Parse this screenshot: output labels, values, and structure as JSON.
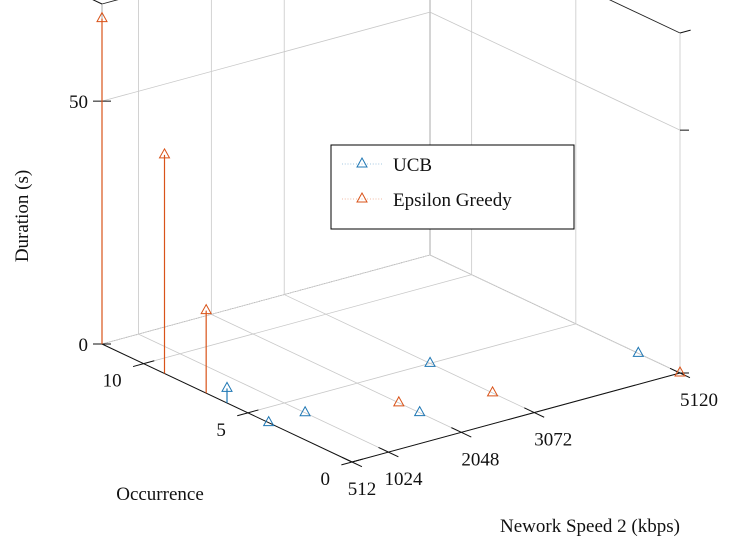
{
  "chart_data": {
    "type": "3d-stem",
    "xlabel": "Nework Speed 2 (kbps)",
    "ylabel": "Occurrence",
    "zlabel": "Duration (s)",
    "xticks": [
      "512",
      "1024",
      "2048",
      "3072",
      "5120"
    ],
    "yticks": [
      "0",
      "5",
      "10"
    ],
    "zticks": [
      "0",
      "50"
    ],
    "xlim": [
      512,
      5120
    ],
    "ylim": [
      0,
      12
    ],
    "zlim": [
      0,
      70
    ],
    "grid": true,
    "legend_position": "inside-center-right",
    "series": [
      {
        "name": "UCB",
        "color": "#1f77b4",
        "marker": "triangle",
        "points": [
          {
            "x": 512,
            "y": 6,
            "z": 3
          },
          {
            "x": 512,
            "y": 4,
            "z": 0
          },
          {
            "x": 1024,
            "y": 4,
            "z": 0
          },
          {
            "x": 2048,
            "y": 2,
            "z": 0
          },
          {
            "x": 3072,
            "y": 5,
            "z": 0
          },
          {
            "x": 5120,
            "y": 2,
            "z": 0
          }
        ]
      },
      {
        "name": "Epsilon Greedy",
        "color": "#d95319",
        "marker": "triangle",
        "points": [
          {
            "x": 512,
            "y": 12,
            "z": 67
          },
          {
            "x": 512,
            "y": 9,
            "z": 45
          },
          {
            "x": 512,
            "y": 7,
            "z": 17
          },
          {
            "x": 2048,
            "y": 3,
            "z": 0
          },
          {
            "x": 3072,
            "y": 2,
            "z": 0
          },
          {
            "x": 5120,
            "y": 0,
            "z": 0
          }
        ]
      }
    ]
  }
}
